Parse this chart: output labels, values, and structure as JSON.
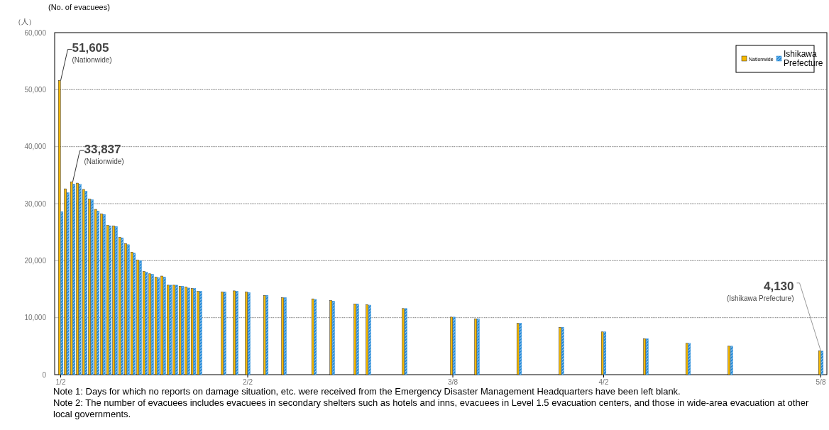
{
  "chart_data": {
    "type": "bar",
    "title": "(No. of evacuees)",
    "ylabel": "（人）",
    "x": [
      "--01-02",
      "--01-03",
      "--01-04",
      "--01-05",
      "--01-06",
      "--01-07",
      "--01-08",
      "--01-09",
      "--01-10",
      "--01-11",
      "--01-12",
      "--01-13",
      "--01-14",
      "--01-15",
      "--01-16",
      "--01-17",
      "--01-18",
      "--01-19",
      "--01-20",
      "--01-21",
      "--01-22",
      "--01-23",
      "--01-24",
      "--01-25",
      "--01-29",
      "--01-31",
      "--02-02",
      "--02-05",
      "--02-08",
      "--02-13",
      "--02-16",
      "--02-20",
      "--02-22",
      "--02-28",
      "--03-08",
      "--03-12",
      "--03-19",
      "--03-26",
      "--04-02",
      "--04-09",
      "--04-16",
      "--04-23",
      "--05-08"
    ],
    "series": [
      {
        "name": "Nationwide",
        "color": "#f5b800",
        "values": [
          51605,
          32600,
          33837,
          33600,
          32500,
          30800,
          29000,
          28200,
          26200,
          26100,
          24100,
          23000,
          21500,
          20100,
          18100,
          17700,
          17100,
          17300,
          15700,
          15700,
          15500,
          15400,
          15100,
          14600,
          14500,
          14700,
          14500,
          13900,
          13500,
          13300,
          13000,
          12400,
          12300,
          11600,
          10100,
          9800,
          9000,
          8300,
          7500,
          6300,
          5500,
          5000,
          4200
        ]
      },
      {
        "name": "Ishikawa Prefecture",
        "color": "#1f87d8",
        "values": [
          28600,
          31900,
          33400,
          33400,
          32200,
          30700,
          28700,
          28100,
          26100,
          26000,
          24000,
          22800,
          21300,
          20000,
          18000,
          17600,
          17000,
          17100,
          15700,
          15700,
          15500,
          15200,
          15100,
          14600,
          14500,
          14600,
          14400,
          13900,
          13500,
          13200,
          12900,
          12400,
          12200,
          11600,
          10100,
          9800,
          9000,
          8300,
          7500,
          6300,
          5500,
          5000,
          4130
        ]
      }
    ],
    "xlim": [
      "--01-01",
      "--05-09"
    ],
    "xticks": [
      {
        "value": "--01-02",
        "label": "1/2"
      },
      {
        "value": "--02-02",
        "label": "2/2"
      },
      {
        "value": "--03-08",
        "label": "3/8"
      },
      {
        "value": "--04-02",
        "label": "4/2"
      },
      {
        "value": "--05-08",
        "label": "5/8"
      }
    ],
    "ylim": [
      0,
      60000
    ],
    "yticks": [
      {
        "value": 0,
        "label": "0"
      },
      {
        "value": 10000,
        "label": "10,000"
      },
      {
        "value": 20000,
        "label": "20,000"
      },
      {
        "value": 30000,
        "label": "30,000"
      },
      {
        "value": 40000,
        "label": "40,000"
      },
      {
        "value": 50000,
        "label": "50,000"
      },
      {
        "value": 60000,
        "label": "60,000"
      }
    ],
    "grid": "y",
    "legend": "top right",
    "annotations": [
      {
        "text": "51,605\n(Nationwide)",
        "x": "--01-02",
        "y": 51605
      },
      {
        "text": "33,837\n(Nationwide)",
        "x": "--01-04",
        "y": 33837
      },
      {
        "text": "4,130\n(Ishikawa Prefecture)",
        "x": "--05-08",
        "y": 4130
      },
      "Note 1: Days for which no reports on damage situation, etc. were received from the Emergency Disaster Management Headquarters have been left blank.",
      "Note 2: The number of evacuees includes evacuees in secondary shelters such as hotels and inns, evacuees in Level 1.5 evacuation centers, and those in wide-area evacuation at other local governments."
    ]
  }
}
